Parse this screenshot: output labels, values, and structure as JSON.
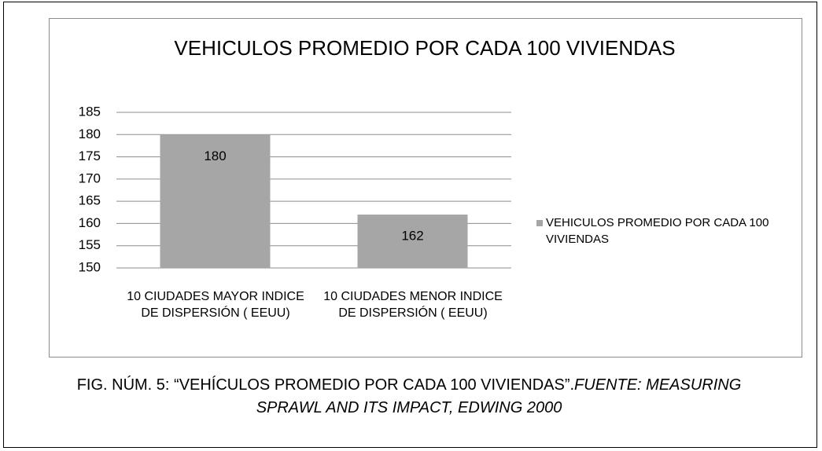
{
  "chart_data": {
    "type": "bar",
    "title": "VEHICULOS PROMEDIO POR CADA 100 VIVIENDAS",
    "categories": [
      "10 CIUDADES MAYOR INDICE DE DISPERSIÓN ( EEUU)",
      "10 CIUDADES MENOR INDICE DE DISPERSIÓN ( EEUU)"
    ],
    "series": [
      {
        "name": "VEHICULOS PROMEDIO POR CADA 100 VIVIENDAS",
        "color": "#a6a6a6",
        "values": [
          180,
          162
        ]
      }
    ],
    "ylim": [
      150,
      185
    ],
    "yticks": [
      150,
      155,
      160,
      165,
      170,
      175,
      180,
      185
    ],
    "grid": true,
    "legend": "right",
    "data_labels": true
  },
  "caption": {
    "text": "FIG. NÚM. 5: “VEHÍCULOS PROMEDIO POR CADA 100 VIVIENDAS”.",
    "source": "FUENTE: MEASURING SPRAWL AND ITS IMPACT, EDWING 2000"
  }
}
